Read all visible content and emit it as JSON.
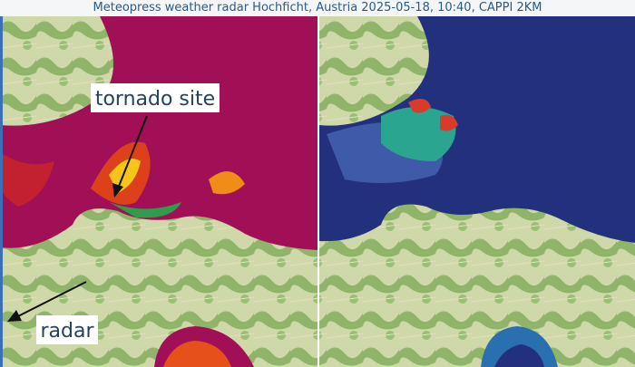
{
  "header": {
    "title": "Meteopress weather radar Hochficht, Austria 2025-05-18, 10:40, CAPPI 2KM"
  },
  "annotations": [
    {
      "label": "tornado site"
    },
    {
      "label": "radar"
    }
  ]
}
